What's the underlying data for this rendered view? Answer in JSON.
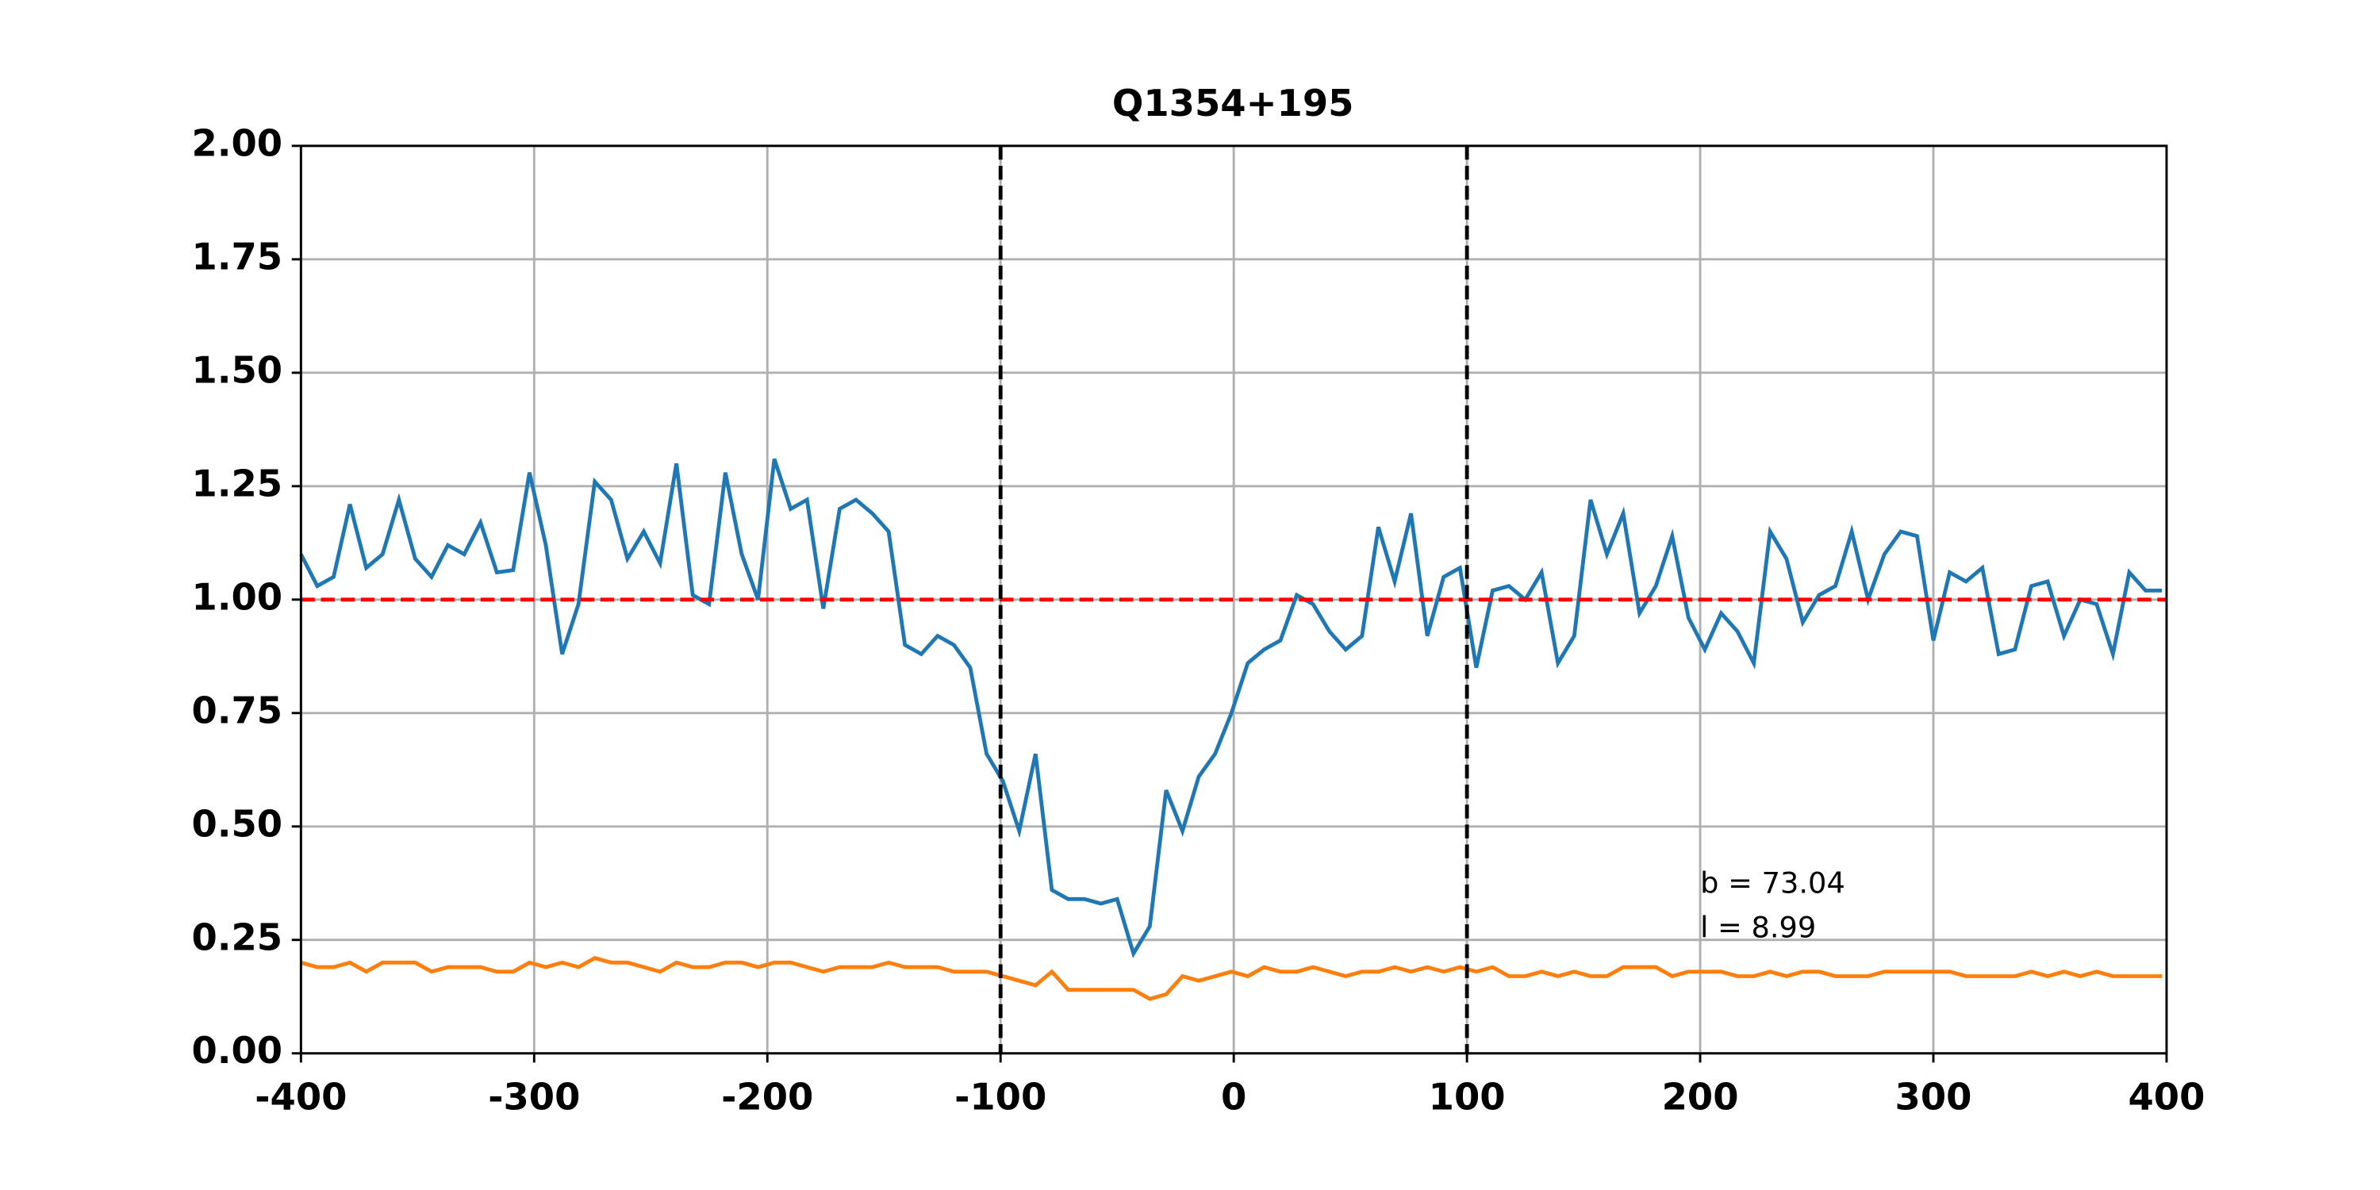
{
  "chart_data": {
    "type": "line",
    "title": "Q1354+195",
    "x": [
      -400,
      -393,
      -386,
      -379,
      -372,
      -365,
      -358,
      -351,
      -344,
      -337,
      -330,
      -323,
      -316,
      -309,
      -302,
      -295,
      -288,
      -281,
      -274,
      -267,
      -260,
      -253,
      -246,
      -239,
      -232,
      -225,
      -218,
      -211,
      -204,
      -197,
      -190,
      -183,
      -176,
      -169,
      -162,
      -155,
      -148,
      -141,
      -134,
      -127,
      -120,
      -113,
      -106,
      -99,
      -92,
      -85,
      -78,
      -71,
      -64,
      -57,
      -50,
      -43,
      -36,
      -29,
      -22,
      -15,
      -8,
      -1,
      6,
      13,
      20,
      27,
      34,
      41,
      48,
      55,
      62,
      69,
      76,
      83,
      90,
      97,
      104,
      111,
      118,
      125,
      132,
      139,
      146,
      153,
      160,
      167,
      174,
      181,
      188,
      195,
      202,
      209,
      216,
      223,
      230,
      237,
      244,
      251,
      258,
      265,
      272,
      279,
      286,
      293,
      300,
      307,
      314,
      321,
      328,
      335,
      342,
      349,
      356,
      363,
      370,
      377,
      384,
      391,
      398
    ],
    "series": [
      {
        "color": "#1f77b4",
        "values": [
          1.1,
          1.03,
          1.05,
          1.21,
          1.07,
          1.1,
          1.22,
          1.09,
          1.05,
          1.12,
          1.1,
          1.17,
          1.06,
          1.065,
          1.28,
          1.12,
          0.88,
          0.99,
          1.26,
          1.22,
          1.09,
          1.15,
          1.08,
          1.3,
          1.01,
          0.99,
          1.28,
          1.1,
          1.0,
          1.31,
          1.2,
          1.22,
          0.98,
          1.2,
          1.22,
          1.19,
          1.15,
          0.9,
          0.88,
          0.92,
          0.9,
          0.85,
          0.66,
          0.6,
          0.49,
          0.66,
          0.36,
          0.34,
          0.34,
          0.33,
          0.34,
          0.22,
          0.28,
          0.58,
          0.49,
          0.61,
          0.66,
          0.75,
          0.86,
          0.89,
          0.91,
          1.01,
          0.99,
          0.93,
          0.89,
          0.92,
          1.16,
          1.04,
          1.19,
          0.92,
          1.05,
          1.07,
          0.85,
          1.02,
          1.03,
          1.0,
          1.06,
          0.86,
          0.92,
          1.22,
          1.1,
          1.19,
          0.97,
          1.03,
          1.14,
          0.96,
          0.89,
          0.97,
          0.93,
          0.86,
          1.15,
          1.09,
          0.95,
          1.01,
          1.03,
          1.15,
          1.0,
          1.1,
          1.15,
          1.14,
          0.91,
          1.06,
          1.04,
          1.07,
          0.88,
          0.89,
          1.03,
          1.04,
          0.92,
          1.0,
          0.99,
          0.88,
          1.06,
          1.02,
          1.02
        ]
      },
      {
        "color": "#ff7f0e",
        "values": [
          0.2,
          0.19,
          0.19,
          0.2,
          0.18,
          0.2,
          0.2,
          0.2,
          0.18,
          0.19,
          0.19,
          0.19,
          0.18,
          0.18,
          0.2,
          0.19,
          0.2,
          0.19,
          0.21,
          0.2,
          0.2,
          0.19,
          0.18,
          0.2,
          0.19,
          0.19,
          0.2,
          0.2,
          0.19,
          0.2,
          0.2,
          0.19,
          0.18,
          0.19,
          0.19,
          0.19,
          0.2,
          0.19,
          0.19,
          0.19,
          0.18,
          0.18,
          0.18,
          0.17,
          0.16,
          0.15,
          0.18,
          0.14,
          0.14,
          0.14,
          0.14,
          0.14,
          0.12,
          0.13,
          0.17,
          0.16,
          0.17,
          0.18,
          0.17,
          0.19,
          0.18,
          0.18,
          0.19,
          0.18,
          0.17,
          0.18,
          0.18,
          0.19,
          0.18,
          0.19,
          0.18,
          0.19,
          0.18,
          0.19,
          0.17,
          0.17,
          0.18,
          0.17,
          0.18,
          0.17,
          0.17,
          0.19,
          0.19,
          0.19,
          0.17,
          0.18,
          0.18,
          0.18,
          0.17,
          0.17,
          0.18,
          0.17,
          0.18,
          0.18,
          0.17,
          0.17,
          0.17,
          0.18,
          0.18,
          0.18,
          0.18,
          0.18,
          0.17,
          0.17,
          0.17,
          0.17,
          0.18,
          0.17,
          0.18,
          0.17,
          0.18,
          0.17,
          0.17,
          0.17,
          0.17
        ]
      }
    ],
    "hline": {
      "value": 1.0,
      "color": "#ff0000"
    },
    "vlines": [
      -100,
      100
    ],
    "annotations": [
      "b = 73.04",
      "l = 8.99"
    ],
    "annotation_x": 200,
    "xlim": [
      -400,
      400
    ],
    "xticks": [
      -400,
      -300,
      -200,
      -100,
      0,
      100,
      200,
      300,
      400
    ],
    "ylim": [
      0,
      2
    ],
    "yticks": [
      {
        "value": 0,
        "label": "0.00"
      },
      {
        "value": 0.25,
        "label": "0.25"
      },
      {
        "value": 0.5,
        "label": "0.50"
      },
      {
        "value": 0.75,
        "label": "0.75"
      },
      {
        "value": 1,
        "label": "1.00"
      },
      {
        "value": 1.25,
        "label": "1.25"
      },
      {
        "value": 1.5,
        "label": "1.50"
      },
      {
        "value": 1.75,
        "label": "1.75"
      },
      {
        "value": 2,
        "label": "2.00"
      }
    ],
    "grid": true
  }
}
